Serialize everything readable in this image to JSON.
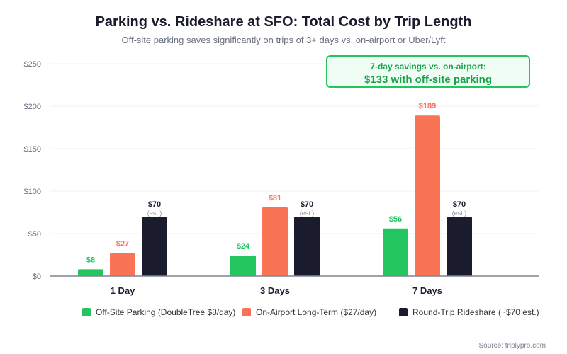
{
  "chart_data": {
    "type": "bar",
    "title": "Parking vs. Rideshare at SFO: Total Cost by Trip Length",
    "subtitle": "Off-site parking saves significantly on trips of 3+ days vs. on-airport or Uber/Lyft",
    "categories": [
      "1 Day",
      "3 Days",
      "7 Days"
    ],
    "series": [
      {
        "name": "Off-Site Parking (DoubleTree $8/day)",
        "color": "#22c55e",
        "values": [
          8,
          24,
          56
        ],
        "labels": [
          "$8",
          "$24",
          "$56"
        ]
      },
      {
        "name": "On-Airport Long-Term ($27/day)",
        "color": "#f87455",
        "values": [
          27,
          81,
          189
        ],
        "labels": [
          "$27",
          "$81",
          "$189"
        ]
      },
      {
        "name": "Round-Trip Rideshare (~$70 est.)",
        "color": "#1a1c2e",
        "values": [
          70,
          70,
          70
        ],
        "labels": [
          "$70",
          "$70",
          "$70"
        ],
        "sublabel": "(est.)"
      }
    ],
    "ylim": [
      0,
      250
    ],
    "yticks": [
      "$0",
      "$50",
      "$100",
      "$150",
      "$200",
      "$250"
    ],
    "ytick_values": [
      0,
      50,
      100,
      150,
      200,
      250
    ],
    "grid": true,
    "legend": "bottom",
    "annotation": {
      "line1": "7-day savings vs. on-airport:",
      "line2": "$133 with off-site parking"
    },
    "source": "Source: triplypro.com"
  }
}
